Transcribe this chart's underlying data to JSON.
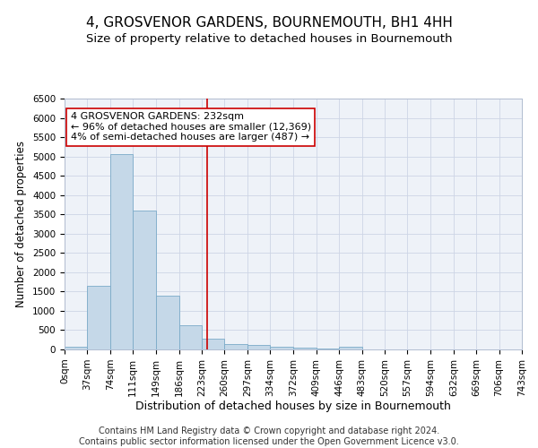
{
  "title": "4, GROSVENOR GARDENS, BOURNEMOUTH, BH1 4HH",
  "subtitle": "Size of property relative to detached houses in Bournemouth",
  "xlabel": "Distribution of detached houses by size in Bournemouth",
  "ylabel": "Number of detached properties",
  "footer_line1": "Contains HM Land Registry data © Crown copyright and database right 2024.",
  "footer_line2": "Contains public sector information licensed under the Open Government Licence v3.0.",
  "annotation_title": "4 GROSVENOR GARDENS: 232sqm",
  "annotation_line1": "← 96% of detached houses are smaller (12,369)",
  "annotation_line2": "4% of semi-detached houses are larger (487) →",
  "property_size": 232,
  "bin_edges": [
    0,
    37,
    74,
    111,
    149,
    186,
    223,
    260,
    297,
    334,
    372,
    409,
    446,
    483,
    520,
    557,
    594,
    632,
    669,
    706,
    743
  ],
  "bar_heights": [
    70,
    1650,
    5050,
    3600,
    1400,
    620,
    290,
    150,
    120,
    70,
    50,
    20,
    70,
    0,
    0,
    0,
    0,
    0,
    0,
    0
  ],
  "bar_color": "#c5d8e8",
  "bar_edge_color": "#7aaac8",
  "vline_color": "#cc0000",
  "vline_x": 232,
  "annotation_box_color": "#cc0000",
  "annotation_bg": "white",
  "bg_color": "#eef2f8",
  "grid_color": "#cdd5e5",
  "ylim": [
    0,
    6500
  ],
  "yticks": [
    0,
    500,
    1000,
    1500,
    2000,
    2500,
    3000,
    3500,
    4000,
    4500,
    5000,
    5500,
    6000,
    6500
  ],
  "title_fontsize": 11,
  "subtitle_fontsize": 9.5,
  "xlabel_fontsize": 9,
  "ylabel_fontsize": 8.5,
  "tick_fontsize": 7.5,
  "annotation_fontsize": 8,
  "footer_fontsize": 7
}
